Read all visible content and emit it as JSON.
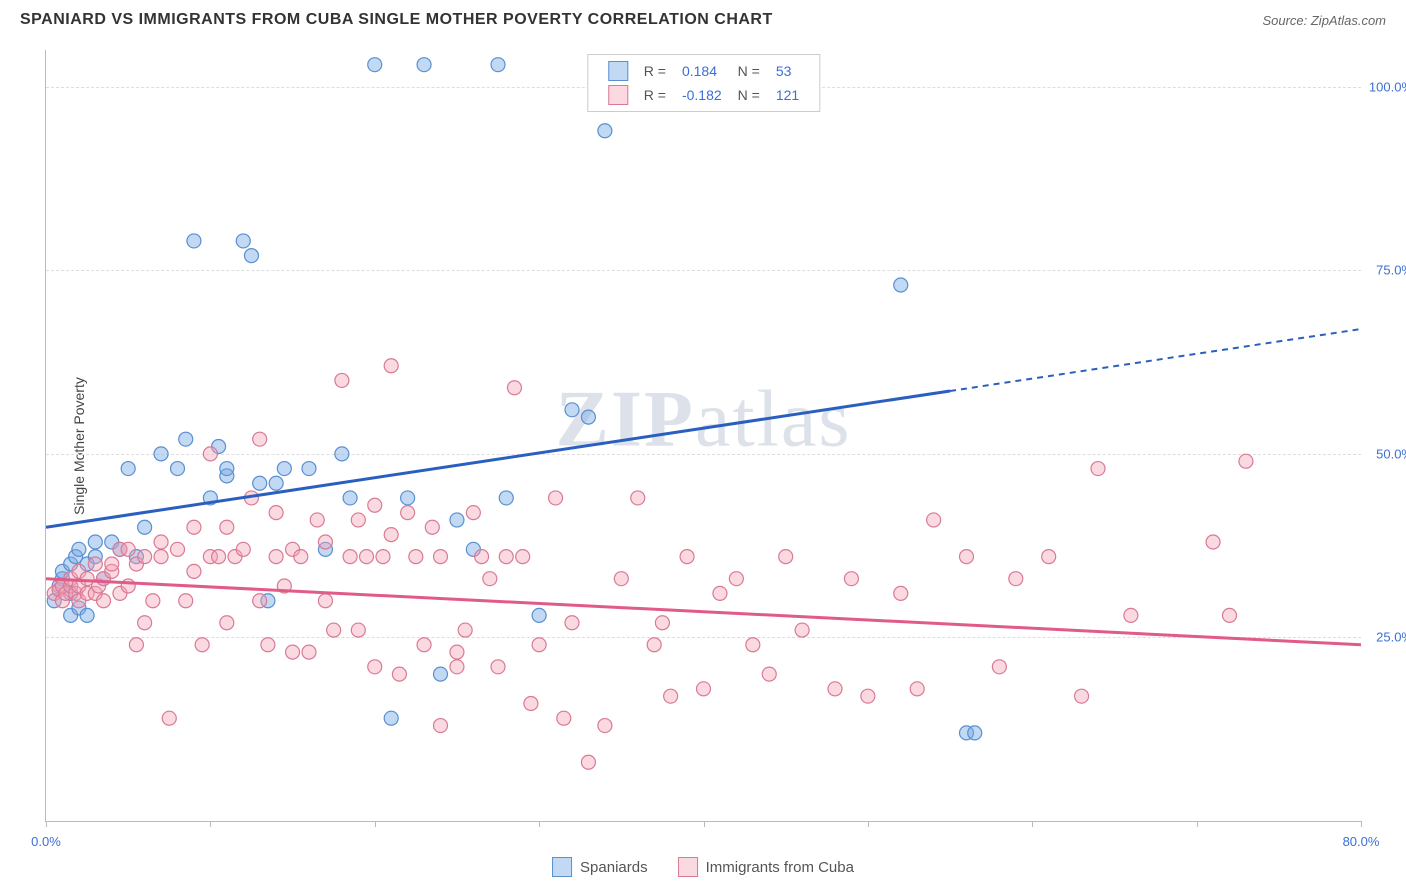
{
  "title": "SPANIARD VS IMMIGRANTS FROM CUBA SINGLE MOTHER POVERTY CORRELATION CHART",
  "source": "Source: ZipAtlas.com",
  "ylabel": "Single Mother Poverty",
  "watermark_a": "ZIP",
  "watermark_b": "atlas",
  "chart": {
    "type": "scatter",
    "xlim": [
      0,
      80
    ],
    "ylim": [
      0,
      105
    ],
    "xticks": [
      0,
      10,
      20,
      30,
      40,
      50,
      60,
      70,
      80
    ],
    "xtick_labels": {
      "0": "0.0%",
      "80": "80.0%"
    },
    "yticks": [
      25,
      50,
      75,
      100
    ],
    "ytick_labels": {
      "25": "25.0%",
      "50": "50.0%",
      "75": "75.0%",
      "100": "100.0%"
    },
    "background_color": "#ffffff",
    "grid_color": "#dddddd",
    "axis_color": "#bbbbbb",
    "tick_label_color": "#3b6fd6",
    "marker_radius": 7,
    "series": [
      {
        "name": "Spaniards",
        "fill": "rgba(120,170,230,0.45)",
        "stroke": "#5a8fd0",
        "r_value": "0.184",
        "n_value": "53",
        "trend": {
          "y_at_xmin": 40,
          "y_at_xmax": 67,
          "solid_until_x": 55,
          "color": "#2a5fc0",
          "width": 3
        },
        "points": [
          [
            0.5,
            30
          ],
          [
            0.8,
            32
          ],
          [
            1,
            33
          ],
          [
            1,
            34
          ],
          [
            1.5,
            35
          ],
          [
            1.5,
            28
          ],
          [
            1.5,
            31
          ],
          [
            1.8,
            36
          ],
          [
            2,
            37
          ],
          [
            2,
            29
          ],
          [
            2.5,
            28
          ],
          [
            2.5,
            35
          ],
          [
            3,
            38
          ],
          [
            3,
            36
          ],
          [
            3.5,
            33
          ],
          [
            4,
            38
          ],
          [
            4.5,
            37
          ],
          [
            5,
            48
          ],
          [
            5.5,
            36
          ],
          [
            6,
            40
          ],
          [
            7,
            50
          ],
          [
            8,
            48
          ],
          [
            8.5,
            52
          ],
          [
            9,
            79
          ],
          [
            10,
            44
          ],
          [
            10.5,
            51
          ],
          [
            11,
            47
          ],
          [
            11,
            48
          ],
          [
            12,
            79
          ],
          [
            12.5,
            77
          ],
          [
            13,
            46
          ],
          [
            13.5,
            30
          ],
          [
            14,
            46
          ],
          [
            14.5,
            48
          ],
          [
            16,
            48
          ],
          [
            17,
            37
          ],
          [
            18,
            50
          ],
          [
            18.5,
            44
          ],
          [
            20,
            103
          ],
          [
            21,
            14
          ],
          [
            22,
            44
          ],
          [
            23,
            103
          ],
          [
            24,
            20
          ],
          [
            25,
            41
          ],
          [
            26,
            37
          ],
          [
            27.5,
            103
          ],
          [
            28,
            44
          ],
          [
            30,
            28
          ],
          [
            32,
            56
          ],
          [
            33,
            55
          ],
          [
            34,
            94
          ],
          [
            52,
            73
          ],
          [
            56,
            12
          ],
          [
            56.5,
            12
          ]
        ]
      },
      {
        "name": "Immigrants from Cuba",
        "fill": "rgba(245,160,180,0.40)",
        "stroke": "#d97a95",
        "r_value": "-0.182",
        "n_value": "121",
        "trend": {
          "y_at_xmin": 33,
          "y_at_xmax": 24,
          "solid_until_x": 80,
          "color": "#e05a8a",
          "width": 3
        },
        "points": [
          [
            0.5,
            31
          ],
          [
            0.8,
            31.5
          ],
          [
            1,
            32
          ],
          [
            1,
            30
          ],
          [
            1.2,
            31
          ],
          [
            1.5,
            32
          ],
          [
            1.5,
            33
          ],
          [
            1.8,
            31
          ],
          [
            2,
            32
          ],
          [
            2,
            30
          ],
          [
            2,
            34
          ],
          [
            2.5,
            31
          ],
          [
            2.5,
            33
          ],
          [
            3,
            31
          ],
          [
            3,
            35
          ],
          [
            3.2,
            32
          ],
          [
            3.5,
            33
          ],
          [
            3.5,
            30
          ],
          [
            4,
            34
          ],
          [
            4,
            35
          ],
          [
            4.5,
            31
          ],
          [
            4.5,
            37
          ],
          [
            5,
            32
          ],
          [
            5,
            37
          ],
          [
            5.5,
            35
          ],
          [
            5.5,
            24
          ],
          [
            6,
            36
          ],
          [
            6,
            27
          ],
          [
            6.5,
            30
          ],
          [
            7,
            36
          ],
          [
            7,
            38
          ],
          [
            7.5,
            14
          ],
          [
            8,
            37
          ],
          [
            8.5,
            30
          ],
          [
            9,
            34
          ],
          [
            9,
            40
          ],
          [
            9.5,
            24
          ],
          [
            10,
            50
          ],
          [
            10,
            36
          ],
          [
            10.5,
            36
          ],
          [
            11,
            40
          ],
          [
            11,
            27
          ],
          [
            11.5,
            36
          ],
          [
            12,
            37
          ],
          [
            12.5,
            44
          ],
          [
            13,
            52
          ],
          [
            13,
            30
          ],
          [
            13.5,
            24
          ],
          [
            14,
            36
          ],
          [
            14,
            42
          ],
          [
            14.5,
            32
          ],
          [
            15,
            23
          ],
          [
            15,
            37
          ],
          [
            15.5,
            36
          ],
          [
            16,
            23
          ],
          [
            16.5,
            41
          ],
          [
            17,
            38
          ],
          [
            17,
            30
          ],
          [
            17.5,
            26
          ],
          [
            18,
            60
          ],
          [
            18.5,
            36
          ],
          [
            19,
            41
          ],
          [
            19,
            26
          ],
          [
            19.5,
            36
          ],
          [
            20,
            21
          ],
          [
            20,
            43
          ],
          [
            20.5,
            36
          ],
          [
            21,
            39
          ],
          [
            21,
            62
          ],
          [
            21.5,
            20
          ],
          [
            22,
            42
          ],
          [
            22.5,
            36
          ],
          [
            23,
            24
          ],
          [
            23.5,
            40
          ],
          [
            24,
            36
          ],
          [
            24,
            13
          ],
          [
            25,
            23
          ],
          [
            25,
            21
          ],
          [
            25.5,
            26
          ],
          [
            26,
            42
          ],
          [
            26.5,
            36
          ],
          [
            27,
            33
          ],
          [
            27.5,
            21
          ],
          [
            28,
            36
          ],
          [
            28.5,
            59
          ],
          [
            29,
            36
          ],
          [
            29.5,
            16
          ],
          [
            30,
            24
          ],
          [
            31,
            44
          ],
          [
            31.5,
            14
          ],
          [
            32,
            27
          ],
          [
            33,
            8
          ],
          [
            34,
            13
          ],
          [
            35,
            33
          ],
          [
            36,
            44
          ],
          [
            37,
            24
          ],
          [
            37.5,
            27
          ],
          [
            38,
            17
          ],
          [
            39,
            36
          ],
          [
            40,
            18
          ],
          [
            41,
            31
          ],
          [
            42,
            33
          ],
          [
            43,
            24
          ],
          [
            44,
            20
          ],
          [
            45,
            36
          ],
          [
            46,
            26
          ],
          [
            48,
            18
          ],
          [
            49,
            33
          ],
          [
            50,
            17
          ],
          [
            52,
            31
          ],
          [
            53,
            18
          ],
          [
            54,
            41
          ],
          [
            56,
            36
          ],
          [
            58,
            21
          ],
          [
            59,
            33
          ],
          [
            61,
            36
          ],
          [
            63,
            17
          ],
          [
            64,
            48
          ],
          [
            66,
            28
          ],
          [
            71,
            38
          ],
          [
            72,
            28
          ],
          [
            73,
            49
          ]
        ]
      }
    ]
  },
  "legend_bottom_labels": [
    "Spaniards",
    "Immigrants from Cuba"
  ]
}
